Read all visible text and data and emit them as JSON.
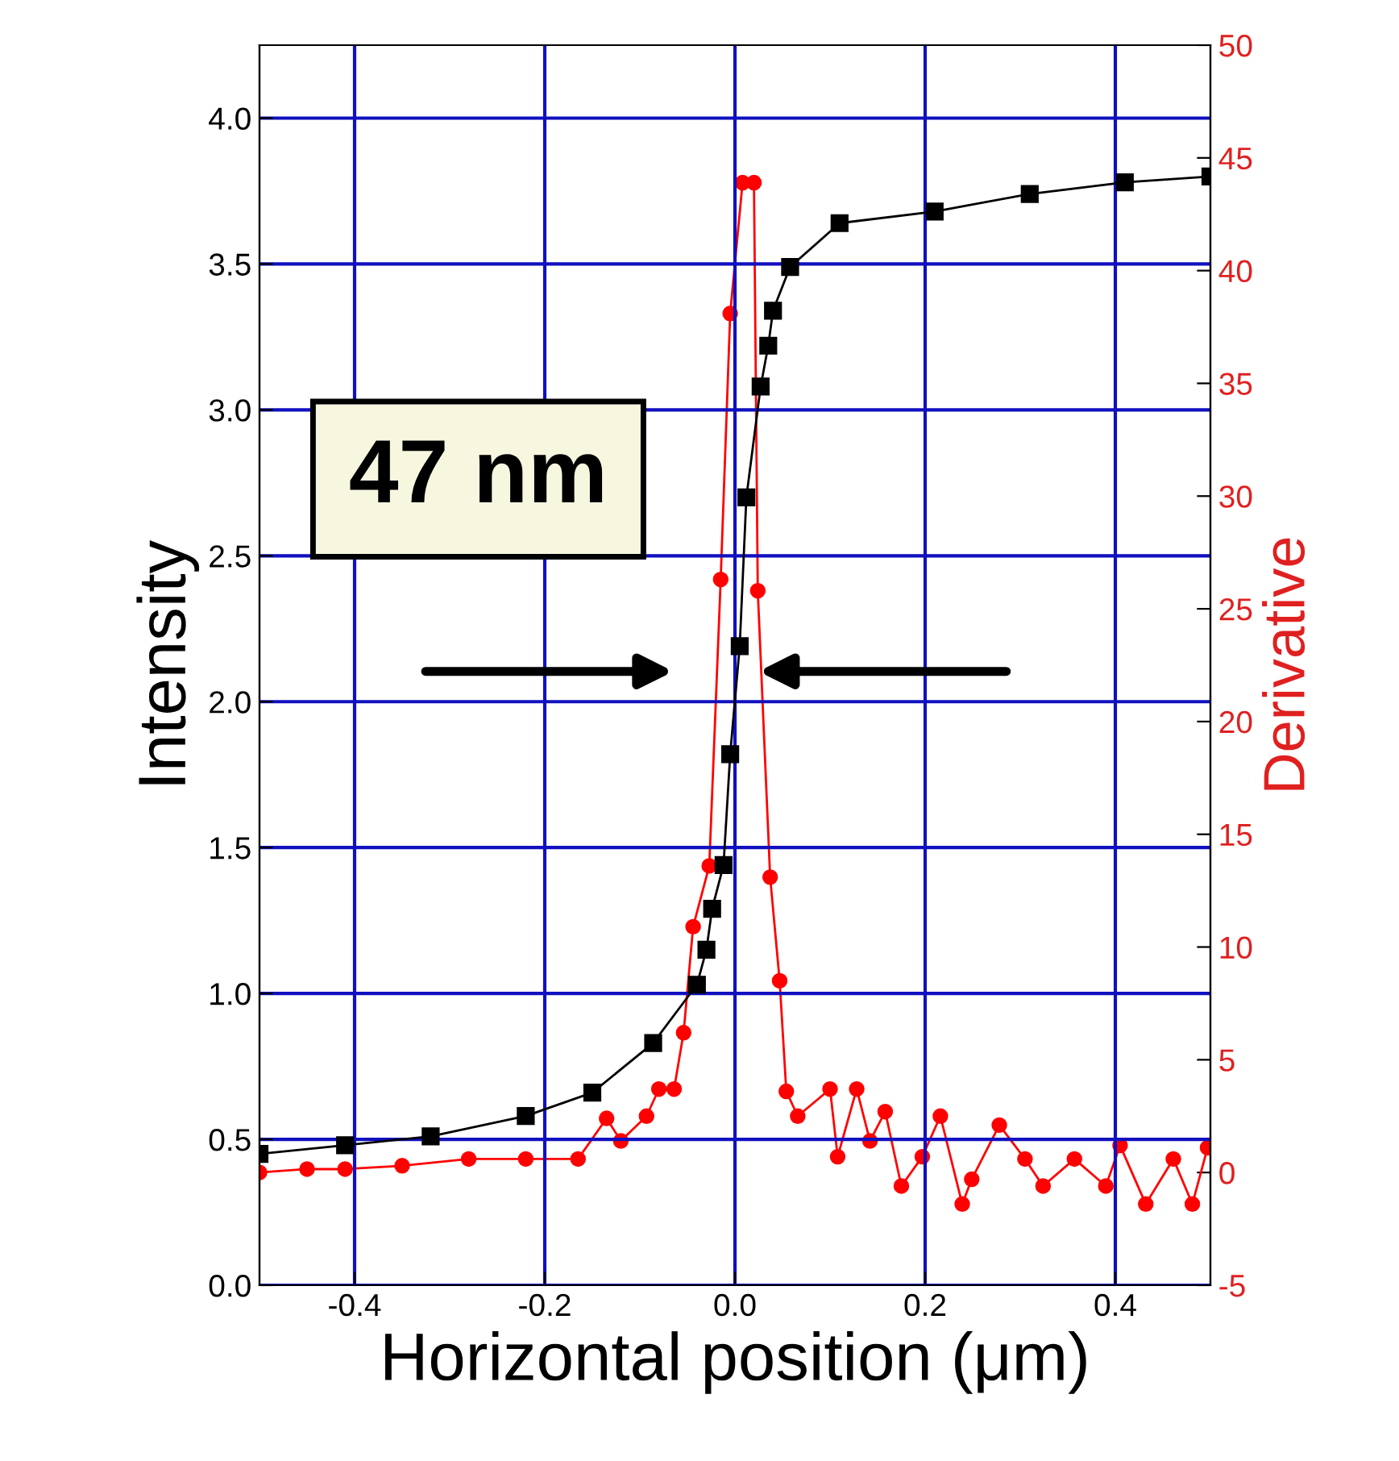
{
  "chart_data": {
    "type": "line",
    "xlabel": "Horizontal position (μm)",
    "ylabel": "Intensity",
    "y2label": "Derivative",
    "xlim": [
      -0.5,
      0.5
    ],
    "xticks": [
      -0.4,
      -0.2,
      {
        "value": 0,
        "label": "0.0"
      },
      0.2,
      0.4
    ],
    "ylim": [
      0,
      4.25
    ],
    "yticks": [
      {
        "value": 0,
        "label": "0.0"
      },
      0.5,
      {
        "value": 1,
        "label": "1.0"
      },
      1.5,
      {
        "value": 2,
        "label": "2.0"
      },
      2.5,
      {
        "value": 3,
        "label": "3.0"
      },
      3.5,
      {
        "value": 4,
        "label": "4.0"
      }
    ],
    "y2lim": [
      -5,
      50
    ],
    "y2ticks": [
      -5,
      0,
      5,
      10,
      15,
      20,
      25,
      30,
      35,
      40,
      45,
      50
    ],
    "grid": true,
    "annotations": [
      "47 nm"
    ],
    "series": [
      {
        "color": "#000000",
        "marker": "square",
        "x": [
          -0.5,
          -0.41,
          -0.32,
          -0.22,
          -0.15,
          -0.086,
          -0.04,
          -0.03,
          -0.024,
          -0.012,
          -0.005,
          0.005,
          0.012,
          0.027,
          0.035,
          0.04,
          0.058,
          0.11,
          0.21,
          0.31,
          0.41,
          0.5
        ],
        "values": [
          0.45,
          0.48,
          0.51,
          0.58,
          0.66,
          0.83,
          1.03,
          1.15,
          1.29,
          1.44,
          1.82,
          2.19,
          2.7,
          3.08,
          3.22,
          3.34,
          3.49,
          3.64,
          3.68,
          3.74,
          3.78,
          3.8
        ]
      },
      {
        "color": "#ff0000",
        "marker": "circle",
        "axis": "y2",
        "x": [
          -0.5,
          -0.45,
          -0.41,
          -0.35,
          -0.28,
          -0.22,
          -0.165,
          -0.135,
          -0.12,
          -0.093,
          -0.08,
          -0.064,
          -0.054,
          -0.044,
          -0.027,
          -0.015,
          -0.005,
          0.008,
          0.02,
          0.024,
          0.037,
          0.047,
          0.054,
          0.066,
          0.1,
          0.108,
          0.128,
          0.142,
          0.158,
          0.175,
          0.197,
          0.216,
          0.239,
          0.249,
          0.278,
          0.305,
          0.324,
          0.357,
          0.39,
          0.405,
          0.432,
          0.461,
          0.481,
          0.497
        ],
        "values": [
          0.0,
          0.15,
          0.15,
          0.3,
          0.6,
          0.6,
          0.6,
          2.4,
          1.4,
          2.5,
          3.7,
          3.7,
          6.2,
          10.9,
          13.6,
          26.3,
          38.1,
          43.9,
          43.9,
          25.8,
          13.1,
          8.5,
          3.6,
          2.5,
          3.7,
          0.7,
          3.7,
          1.4,
          2.7,
          -0.6,
          0.7,
          2.5,
          -1.4,
          -0.3,
          2.1,
          0.6,
          -0.6,
          0.6,
          -0.6,
          1.2,
          -1.4,
          0.6,
          -1.4,
          1.1
        ]
      }
    ]
  }
}
